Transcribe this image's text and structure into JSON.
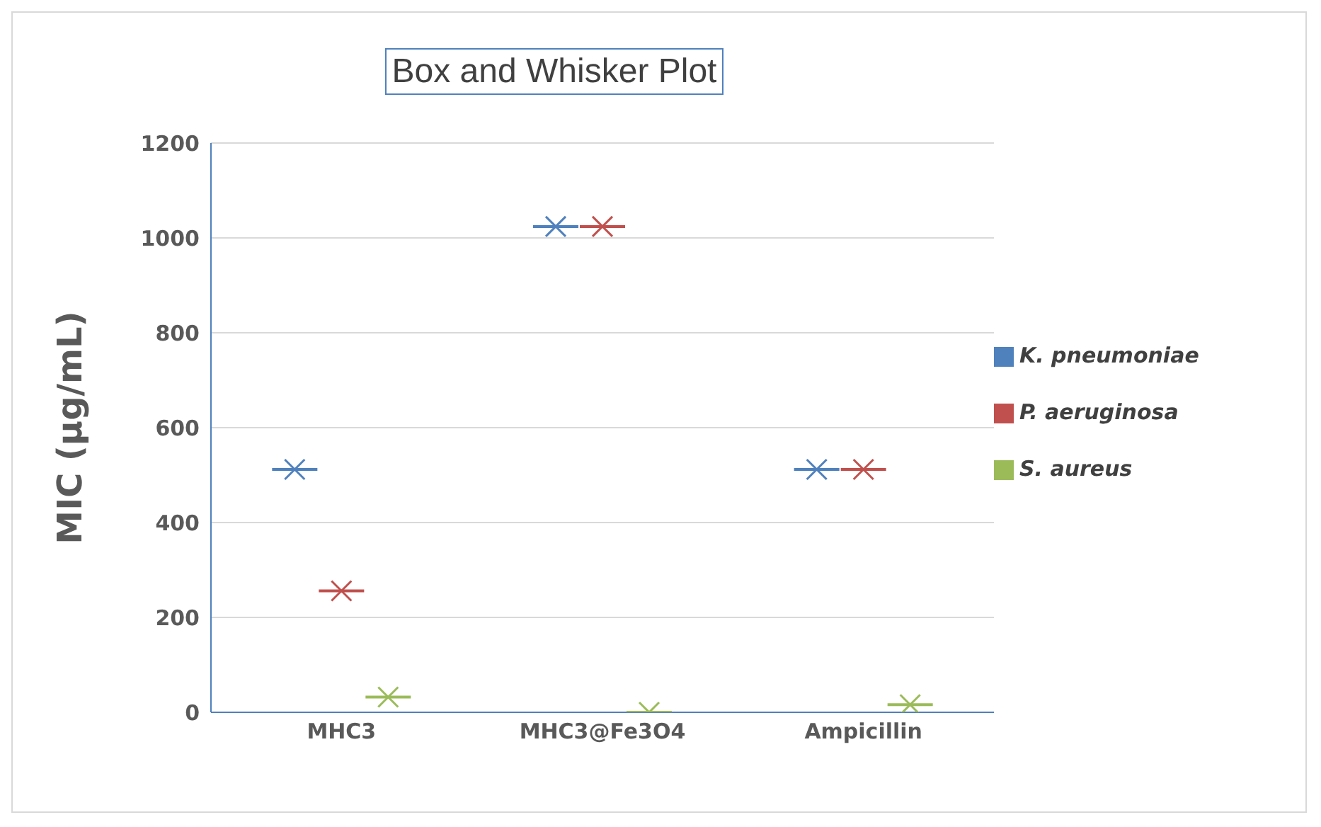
{
  "chart_data": {
    "type": "box",
    "title": "Box and Whisker Plot",
    "ylabel": "MIC (µg/mL)",
    "categories": [
      "MHC3",
      "MHC3@Fe3O4",
      "Ampicillin"
    ],
    "ylim": [
      0,
      1200
    ],
    "yticks": [
      0,
      200,
      400,
      600,
      800,
      1000,
      1200
    ],
    "grid": "y",
    "legend": "right",
    "series": [
      {
        "name": "K. pneumoniae",
        "color": "#4f81bd",
        "boxes": [
          {
            "low": 512,
            "q1": 512,
            "median": 512,
            "q3": 512,
            "high": 512,
            "mean": 512
          },
          {
            "low": 1024,
            "q1": 1024,
            "median": 1024,
            "q3": 1024,
            "high": 1024,
            "mean": 1024
          },
          {
            "low": 512,
            "q1": 512,
            "median": 512,
            "q3": 512,
            "high": 512,
            "mean": 512
          }
        ]
      },
      {
        "name": "P. aeruginosa",
        "color": "#c0504d",
        "boxes": [
          {
            "low": 256,
            "q1": 256,
            "median": 256,
            "q3": 256,
            "high": 256,
            "mean": 256
          },
          {
            "low": 1024,
            "q1": 1024,
            "median": 1024,
            "q3": 1024,
            "high": 1024,
            "mean": 1024
          },
          {
            "low": 512,
            "q1": 512,
            "median": 512,
            "q3": 512,
            "high": 512,
            "mean": 512
          }
        ]
      },
      {
        "name": "S. aureus",
        "color": "#9bbb59",
        "boxes": [
          {
            "low": 32,
            "q1": 32,
            "median": 32,
            "q3": 32,
            "high": 32,
            "mean": 32
          },
          {
            "low": 0,
            "q1": 0,
            "median": 0,
            "q3": 0,
            "high": 0,
            "mean": 0
          },
          {
            "low": 16,
            "q1": 16,
            "median": 16,
            "q3": 16,
            "high": 16,
            "mean": 16
          }
        ]
      }
    ]
  }
}
